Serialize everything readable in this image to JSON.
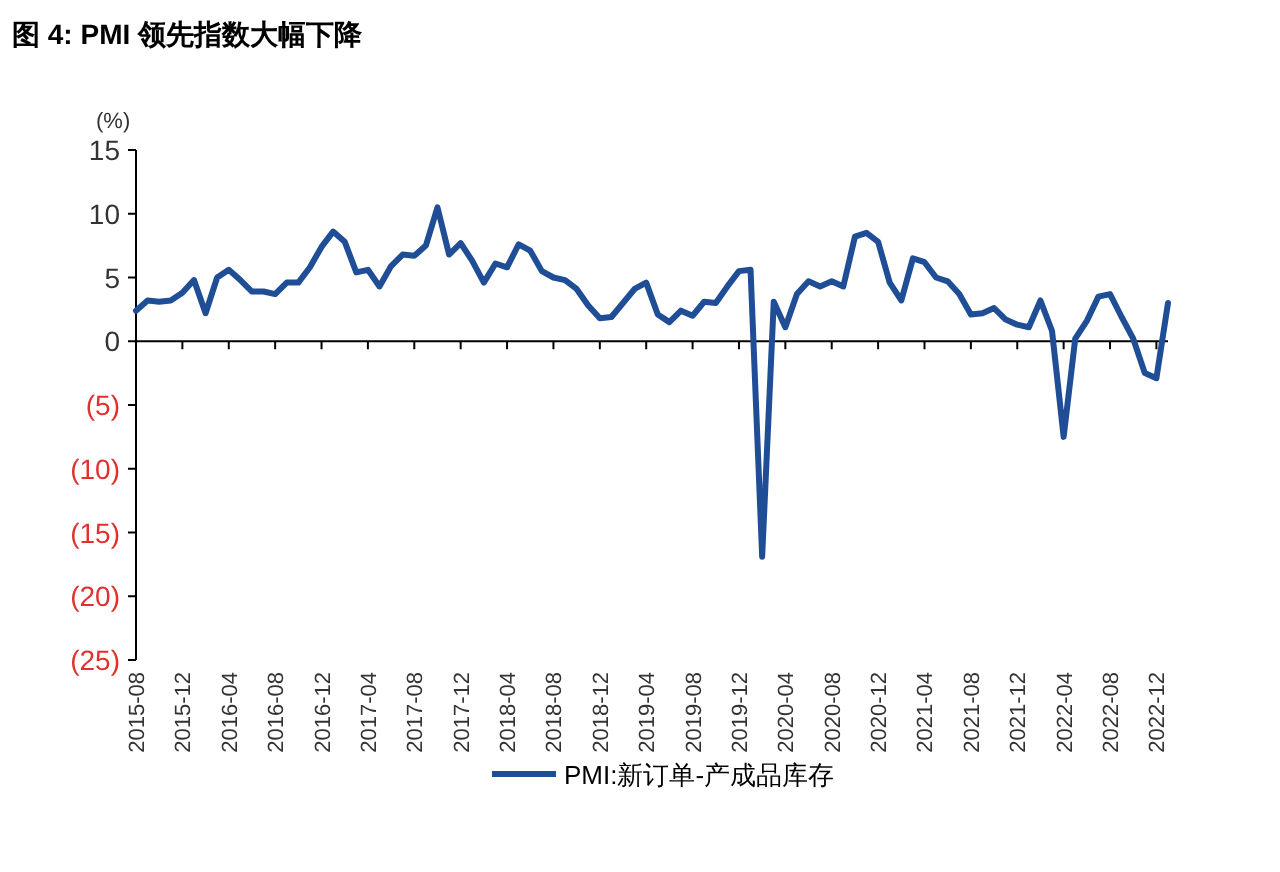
{
  "chart_data": {
    "type": "line",
    "title": "图 4: PMI 领先指数大幅下降",
    "ylabel": "(%)",
    "x": [
      "2015-08",
      "2015-09",
      "2015-10",
      "2015-11",
      "2015-12",
      "2016-01",
      "2016-02",
      "2016-03",
      "2016-04",
      "2016-05",
      "2016-06",
      "2016-07",
      "2016-08",
      "2016-09",
      "2016-10",
      "2016-11",
      "2016-12",
      "2017-01",
      "2017-02",
      "2017-03",
      "2017-04",
      "2017-05",
      "2017-06",
      "2017-07",
      "2017-08",
      "2017-09",
      "2017-10",
      "2017-11",
      "2017-12",
      "2018-01",
      "2018-02",
      "2018-03",
      "2018-04",
      "2018-05",
      "2018-06",
      "2018-07",
      "2018-08",
      "2018-09",
      "2018-10",
      "2018-11",
      "2018-12",
      "2019-01",
      "2019-02",
      "2019-03",
      "2019-04",
      "2019-05",
      "2019-06",
      "2019-07",
      "2019-08",
      "2019-09",
      "2019-10",
      "2019-11",
      "2019-12",
      "2020-01",
      "2020-02",
      "2020-03",
      "2020-04",
      "2020-05",
      "2020-06",
      "2020-07",
      "2020-08",
      "2020-09",
      "2020-10",
      "2020-11",
      "2020-12",
      "2021-01",
      "2021-02",
      "2021-03",
      "2021-04",
      "2021-05",
      "2021-06",
      "2021-07",
      "2021-08",
      "2021-09",
      "2021-10",
      "2021-11",
      "2021-12",
      "2022-01",
      "2022-02",
      "2022-03",
      "2022-04",
      "2022-05",
      "2022-06",
      "2022-07",
      "2022-08",
      "2022-09",
      "2022-10",
      "2022-11",
      "2022-12",
      "2023-01"
    ],
    "series": [
      {
        "name": "PMI:新订单-产成品库存",
        "color": "#1f4e96",
        "values": [
          2.4,
          3.2,
          3.1,
          3.2,
          3.8,
          4.8,
          2.2,
          5.0,
          5.6,
          4.8,
          3.9,
          3.9,
          3.7,
          4.6,
          4.6,
          5.8,
          7.4,
          8.6,
          7.8,
          5.4,
          5.6,
          4.3,
          5.9,
          6.8,
          6.7,
          7.5,
          10.5,
          6.8,
          7.7,
          6.3,
          4.6,
          6.1,
          5.8,
          7.6,
          7.1,
          5.5,
          5.0,
          4.8,
          4.1,
          2.8,
          1.8,
          1.9,
          3.0,
          4.1,
          4.6,
          2.1,
          1.5,
          2.4,
          2.0,
          3.1,
          3.0,
          4.3,
          5.5,
          5.6,
          -16.9,
          3.1,
          1.1,
          3.7,
          4.7,
          4.3,
          4.7,
          4.3,
          8.2,
          8.5,
          7.8,
          4.6,
          3.2,
          6.5,
          6.2,
          5.0,
          4.7,
          3.7,
          2.1,
          2.2,
          2.6,
          1.7,
          1.3,
          1.1,
          3.2,
          0.8,
          -7.5,
          0.2,
          1.6,
          3.5,
          3.7,
          1.9,
          0.2,
          -2.5,
          -2.9,
          3.0
        ]
      }
    ],
    "xlim": [
      "2015-08",
      "2023-01"
    ],
    "xticks": [
      "2015-08",
      "2015-12",
      "2016-04",
      "2016-08",
      "2016-12",
      "2017-04",
      "2017-08",
      "2017-12",
      "2018-04",
      "2018-08",
      "2018-12",
      "2019-04",
      "2019-08",
      "2019-12",
      "2020-04",
      "2020-08",
      "2020-12",
      "2021-04",
      "2021-08",
      "2021-12",
      "2022-04",
      "2022-08",
      "2022-12"
    ],
    "ylim": [
      -25,
      15
    ],
    "yticks": [
      {
        "value": -25,
        "label": "(25)"
      },
      {
        "value": -20,
        "label": "(20)"
      },
      {
        "value": -15,
        "label": "(15)"
      },
      {
        "value": -10,
        "label": "(10)"
      },
      {
        "value": -5,
        "label": "(5)"
      },
      0,
      5,
      10,
      15
    ],
    "legend": "bottom",
    "line_style": "solid",
    "marker": "none"
  }
}
